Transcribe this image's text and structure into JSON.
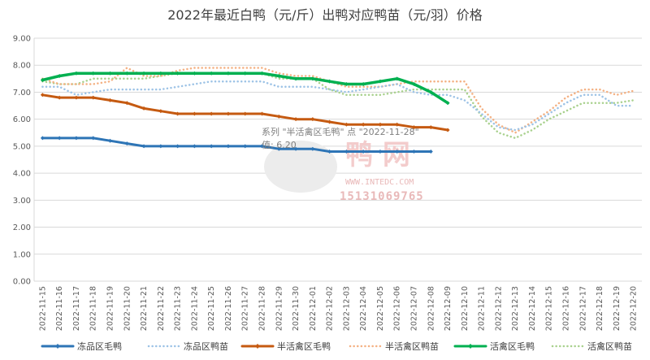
{
  "chart_data": {
    "type": "line",
    "title": "2022年最近白鸭（元/斤）出鸭对应鸭苗（元/羽）价格",
    "ylim": [
      0,
      9
    ],
    "yticks": [
      "0.00",
      "1.00",
      "2.00",
      "3.00",
      "4.00",
      "5.00",
      "6.00",
      "7.00",
      "8.00",
      "9.00"
    ],
    "grid": "horizontal",
    "legend": "bottom",
    "categories": [
      "2022-11-15",
      "2022-11-16",
      "2022-11-17",
      "2022-11-18",
      "2022-11-19",
      "2022-11-20",
      "2022-11-21",
      "2022-11-22",
      "2022-11-23",
      "2022-11-24",
      "2022-11-25",
      "2022-11-26",
      "2022-11-27",
      "2022-11-28",
      "2022-11-29",
      "2022-11-30",
      "2022-12-01",
      "2022-12-02",
      "2022-12-03",
      "2022-12-04",
      "2022-12-05",
      "2022-12-06",
      "2022-12-07",
      "2022-12-08",
      "2022-12-09",
      "2022-12-10",
      "2022-12-11",
      "2022-12-12",
      "2022-12-13",
      "2022-12-14",
      "2022-12-15",
      "2022-12-16",
      "2022-12-17",
      "2022-12-18",
      "2022-12-19",
      "2022-12-20"
    ],
    "series": [
      {
        "name": "冻品区毛鸭",
        "color": "#2e75b6",
        "style": "solid",
        "values": [
          5.3,
          5.3,
          5.3,
          5.3,
          5.2,
          5.1,
          5.0,
          5.0,
          5.0,
          5.0,
          5.0,
          5.0,
          5.0,
          5.0,
          4.9,
          4.9,
          4.9,
          4.8,
          4.8,
          4.8,
          4.8,
          4.8,
          4.8,
          4.8,
          null,
          null,
          null,
          null,
          null,
          null,
          null,
          null,
          null,
          null,
          null,
          null
        ]
      },
      {
        "name": "冻品区鸭苗",
        "color": "#9dc3e6",
        "style": "dotted",
        "values": [
          7.2,
          7.2,
          6.9,
          7.0,
          7.1,
          7.1,
          7.1,
          7.1,
          7.2,
          7.3,
          7.4,
          7.4,
          7.4,
          7.4,
          7.2,
          7.2,
          7.2,
          7.1,
          7.0,
          7.1,
          7.2,
          7.3,
          7.0,
          6.9,
          6.9,
          6.7,
          6.2,
          5.7,
          5.6,
          5.8,
          6.2,
          6.6,
          6.9,
          6.9,
          6.5,
          6.5
        ]
      },
      {
        "name": "半活禽区毛鸭",
        "color": "#c55a11",
        "style": "solid",
        "values": [
          6.9,
          6.8,
          6.8,
          6.8,
          6.7,
          6.6,
          6.4,
          6.3,
          6.2,
          6.2,
          6.2,
          6.2,
          6.2,
          6.2,
          6.1,
          6.0,
          6.0,
          5.9,
          5.8,
          5.8,
          5.8,
          5.8,
          5.7,
          5.7,
          5.6,
          null,
          null,
          null,
          null,
          null,
          null,
          null,
          null,
          null,
          null,
          null
        ]
      },
      {
        "name": "半活禽区鸭苗",
        "color": "#f4b183",
        "style": "dotted",
        "values": [
          7.5,
          7.3,
          7.3,
          7.3,
          7.4,
          7.9,
          7.6,
          7.6,
          7.8,
          7.9,
          7.9,
          7.9,
          7.9,
          7.9,
          7.7,
          7.6,
          7.6,
          7.4,
          7.2,
          7.2,
          7.2,
          7.3,
          7.4,
          7.4,
          7.4,
          7.4,
          6.4,
          5.8,
          5.5,
          5.9,
          6.3,
          6.8,
          7.1,
          7.1,
          6.9,
          7.05
        ]
      },
      {
        "name": "活禽区毛鸭",
        "color": "#00b050",
        "style": "solid",
        "values": [
          7.45,
          7.6,
          7.7,
          7.7,
          7.7,
          7.7,
          7.7,
          7.7,
          7.7,
          7.7,
          7.7,
          7.7,
          7.7,
          7.7,
          7.6,
          7.5,
          7.5,
          7.4,
          7.3,
          7.3,
          7.4,
          7.5,
          7.3,
          7.0,
          6.6,
          null,
          null,
          null,
          null,
          null,
          null,
          null,
          null,
          null,
          null,
          null
        ]
      },
      {
        "name": "活禽区鸭苗",
        "color": "#a9d18e",
        "style": "dotted",
        "values": [
          7.4,
          7.3,
          7.3,
          7.5,
          7.5,
          7.5,
          7.5,
          7.6,
          7.7,
          7.7,
          7.7,
          7.7,
          7.7,
          7.7,
          7.5,
          7.5,
          7.5,
          7.1,
          6.9,
          6.9,
          6.9,
          7.0,
          7.1,
          7.1,
          7.1,
          7.1,
          6.1,
          5.5,
          5.3,
          5.6,
          6.0,
          6.3,
          6.6,
          6.6,
          6.6,
          6.7
        ]
      }
    ],
    "tooltip": {
      "line1": "系列 \"半活禽区毛鸭\" 点 \"2022-11-28\"",
      "line2": "值: 6.20"
    }
  },
  "watermark": {
    "site": "WWW.INTEDC.COM",
    "phone": "15131069765",
    "big": "鸭 网"
  }
}
